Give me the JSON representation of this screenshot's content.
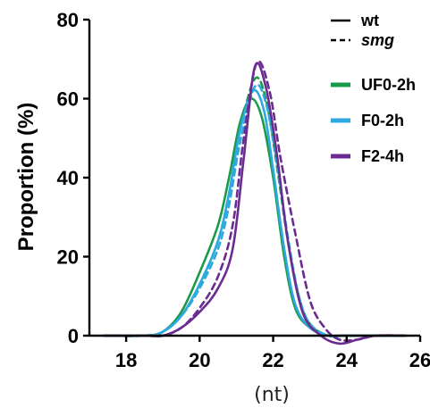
{
  "chart_data": {
    "type": "line",
    "title": "",
    "xlabel": "(nt)",
    "ylabel": "Proportion (%)",
    "xlim": [
      17,
      26
    ],
    "ylim": [
      0,
      80
    ],
    "xticks": [
      18,
      20,
      22,
      24,
      26
    ],
    "yticks": [
      0,
      20,
      40,
      60,
      80
    ],
    "xtick_labels": [
      "18",
      "20",
      "22",
      "24",
      "26"
    ],
    "ytick_labels": [
      "0",
      "20",
      "40",
      "60",
      "80"
    ],
    "legend_position": "top-right",
    "line_styles": [
      {
        "key": "solid",
        "label": "wt",
        "dash": "",
        "italic": false
      },
      {
        "key": "dashed",
        "label": "smg",
        "dash": "7,5",
        "italic": true
      }
    ],
    "groups": [
      {
        "label": "UF0-2h",
        "color": "#1a9a4a"
      },
      {
        "label": "F0-2h",
        "color": "#2ea8e0"
      },
      {
        "label": "F2-4h",
        "color": "#6a2c91"
      }
    ],
    "series": [
      {
        "group": "UF0-2h",
        "style": "solid",
        "points": [
          [
            17.4,
            0
          ],
          [
            18.5,
            0
          ],
          [
            19.0,
            1
          ],
          [
            19.5,
            6
          ],
          [
            20.0,
            16
          ],
          [
            20.5,
            28
          ],
          [
            20.8,
            40
          ],
          [
            21.1,
            54
          ],
          [
            21.4,
            60
          ],
          [
            21.7,
            55
          ],
          [
            22.0,
            40
          ],
          [
            22.3,
            20
          ],
          [
            22.6,
            7
          ],
          [
            23.0,
            2
          ],
          [
            23.5,
            0
          ],
          [
            24.0,
            0
          ],
          [
            25.6,
            0
          ]
        ]
      },
      {
        "group": "UF0-2h",
        "style": "dashed",
        "points": [
          [
            17.4,
            0
          ],
          [
            18.5,
            0
          ],
          [
            19.0,
            1
          ],
          [
            19.5,
            5
          ],
          [
            20.0,
            13
          ],
          [
            20.5,
            24
          ],
          [
            20.8,
            36
          ],
          [
            21.1,
            52
          ],
          [
            21.5,
            65
          ],
          [
            21.8,
            60
          ],
          [
            22.1,
            43
          ],
          [
            22.4,
            24
          ],
          [
            22.7,
            10
          ],
          [
            23.0,
            3
          ],
          [
            23.5,
            0
          ],
          [
            24.0,
            0
          ],
          [
            25.6,
            0
          ]
        ]
      },
      {
        "group": "F0-2h",
        "style": "solid",
        "points": [
          [
            17.4,
            0
          ],
          [
            18.5,
            0
          ],
          [
            19.0,
            1
          ],
          [
            19.5,
            5
          ],
          [
            20.0,
            13
          ],
          [
            20.5,
            24
          ],
          [
            20.8,
            36
          ],
          [
            21.1,
            52
          ],
          [
            21.45,
            62
          ],
          [
            21.75,
            57
          ],
          [
            22.0,
            42
          ],
          [
            22.3,
            22
          ],
          [
            22.6,
            8
          ],
          [
            23.0,
            2
          ],
          [
            23.5,
            0
          ],
          [
            24.0,
            0
          ],
          [
            25.6,
            0
          ]
        ]
      },
      {
        "group": "F0-2h",
        "style": "dashed",
        "points": [
          [
            17.4,
            0
          ],
          [
            18.5,
            0
          ],
          [
            19.0,
            1
          ],
          [
            19.5,
            5
          ],
          [
            20.0,
            12
          ],
          [
            20.5,
            22
          ],
          [
            20.8,
            33
          ],
          [
            21.1,
            49
          ],
          [
            21.5,
            63
          ],
          [
            21.8,
            59
          ],
          [
            22.1,
            44
          ],
          [
            22.4,
            25
          ],
          [
            22.7,
            10
          ],
          [
            23.0,
            3
          ],
          [
            23.5,
            0
          ],
          [
            24.0,
            0
          ],
          [
            25.6,
            0
          ]
        ]
      },
      {
        "group": "F2-4h",
        "style": "solid",
        "points": [
          [
            17.4,
            0
          ],
          [
            18.5,
            0
          ],
          [
            19.0,
            0
          ],
          [
            19.5,
            2
          ],
          [
            20.0,
            6
          ],
          [
            20.5,
            12
          ],
          [
            20.9,
            22
          ],
          [
            21.2,
            45
          ],
          [
            21.5,
            68
          ],
          [
            21.8,
            63
          ],
          [
            22.1,
            46
          ],
          [
            22.4,
            24
          ],
          [
            22.8,
            6
          ],
          [
            23.3,
            0
          ],
          [
            23.8,
            -2
          ],
          [
            24.3,
            -1
          ],
          [
            24.8,
            0
          ],
          [
            25.6,
            0
          ]
        ]
      },
      {
        "group": "F2-4h",
        "style": "dashed",
        "points": [
          [
            17.4,
            0
          ],
          [
            18.5,
            0
          ],
          [
            19.0,
            0
          ],
          [
            19.5,
            2
          ],
          [
            20.0,
            7
          ],
          [
            20.5,
            15
          ],
          [
            20.9,
            28
          ],
          [
            21.2,
            50
          ],
          [
            21.55,
            69
          ],
          [
            21.9,
            62
          ],
          [
            22.2,
            45
          ],
          [
            22.6,
            26
          ],
          [
            23.0,
            9
          ],
          [
            23.4,
            2
          ],
          [
            23.8,
            -1
          ],
          [
            24.3,
            -1
          ],
          [
            24.8,
            0
          ],
          [
            25.6,
            0
          ]
        ]
      }
    ]
  }
}
